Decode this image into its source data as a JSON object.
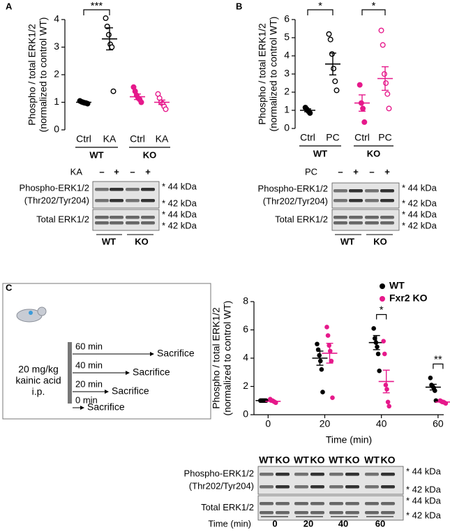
{
  "chart_data": [
    {
      "type": "dot",
      "panel": "A",
      "ylabel": [
        "Phospho / total ERK1/2",
        "(normalized to control WT)"
      ],
      "ylim": [
        0,
        4
      ],
      "yticks": [
        0,
        1,
        2,
        3,
        4
      ],
      "groups": [
        {
          "name": "WT",
          "significance": "***",
          "items": [
            {
              "category": "Ctrl",
              "color": "#000000",
              "filled": true,
              "points": [
                1.05,
                1.02,
                1.0,
                0.98,
                0.97,
                0.95
              ],
              "mean": 1.0,
              "sem": 0.02
            },
            {
              "category": "KA",
              "color": "#000000",
              "filled": false,
              "points": [
                4.05,
                3.75,
                3.45,
                3.1,
                3.0,
                1.4
              ],
              "mean": 3.3,
              "sem": 0.4
            }
          ]
        },
        {
          "name": "KO",
          "items": [
            {
              "category": "Ctrl",
              "color": "#e6198b",
              "filled": true,
              "points": [
                1.55,
                1.4,
                1.25,
                1.15,
                1.1,
                1.0
              ],
              "mean": 1.2,
              "sem": 0.1
            },
            {
              "category": "KA",
              "color": "#e6198b",
              "filled": false,
              "points": [
                1.3,
                1.15,
                1.0,
                0.95,
                0.85,
                0.75
              ],
              "mean": 1.0,
              "sem": 0.08
            }
          ]
        }
      ]
    },
    {
      "type": "dot",
      "panel": "B",
      "ylabel": [
        "Phospho / total ERK1/2",
        "(normalized to control WT)"
      ],
      "ylim": [
        0,
        6
      ],
      "yticks": [
        0,
        1,
        2,
        3,
        4,
        5,
        6
      ],
      "groups": [
        {
          "name": "WT",
          "significance": "*",
          "items": [
            {
              "category": "Ctrl",
              "color": "#000000",
              "filled": true,
              "points": [
                1.15,
                1.05,
                0.95,
                0.85
              ],
              "mean": 1.0,
              "sem": 0.08
            },
            {
              "category": "PC",
              "color": "#000000",
              "filled": false,
              "points": [
                5.2,
                4.9,
                4.1,
                3.3,
                2.6,
                2.1
              ],
              "mean": 3.55,
              "sem": 0.6
            }
          ]
        },
        {
          "name": "KO",
          "significance": "*",
          "items": [
            {
              "category": "Ctrl",
              "color": "#e6198b",
              "filled": true,
              "points": [
                2.4,
                1.4,
                1.1,
                0.35
              ],
              "mean": 1.4,
              "sem": 0.45
            },
            {
              "category": "PC",
              "color": "#e6198b",
              "filled": false,
              "points": [
                5.4,
                4.6,
                3.0,
                2.5,
                1.9,
                1.1
              ],
              "mean": 2.75,
              "sem": 0.65
            }
          ]
        }
      ]
    },
    {
      "type": "time-dot",
      "panel": "C",
      "ylabel": [
        "Phospho / total ERK1/2",
        "(normalized to control WT)"
      ],
      "xlabel": "Time (min)",
      "x": [
        0,
        20,
        40,
        60
      ],
      "xlim": [
        -5,
        62
      ],
      "xticks": [
        0,
        20,
        40,
        60
      ],
      "ylim": [
        0,
        8
      ],
      "yticks": [
        0,
        2,
        4,
        6,
        8
      ],
      "series": [
        {
          "name": "WT",
          "color": "#000000",
          "points": [
            [
              1.0,
              1.0,
              1.0,
              1.0,
              1.0,
              1.0
            ],
            [
              5.0,
              4.6,
              4.2,
              3.8,
              3.2,
              1.6
            ],
            [
              6.1,
              5.4,
              5.1,
              4.8,
              4.3,
              3.1
            ],
            [
              2.6,
              2.1,
              2.0,
              1.9,
              1.7,
              1.0
            ]
          ],
          "means": [
            1.0,
            4.0,
            5.1,
            1.95
          ],
          "sems": [
            0.01,
            0.5,
            0.5,
            0.2
          ]
        },
        {
          "name": "Fxr2 KO",
          "color": "#e6198b",
          "points": [
            [
              1.1,
              1.0,
              1.0,
              0.95,
              0.9,
              0.85
            ],
            [
              6.2,
              5.6,
              4.9,
              4.5,
              3.8,
              1.2
            ],
            [
              5.2,
              4.3,
              2.1,
              1.8,
              0.9,
              0.6
            ],
            [
              1.0,
              0.95,
              0.9,
              0.9,
              0.85,
              0.8
            ]
          ],
          "means": [
            0.95,
            4.35,
            2.35,
            0.9
          ],
          "sems": [
            0.04,
            0.7,
            0.8,
            0.03
          ]
        }
      ],
      "significance": [
        null,
        null,
        "*",
        "**"
      ]
    }
  ],
  "blots": [
    {
      "treatment": "KA",
      "lanes": [
        "–",
        "+",
        "–",
        "+"
      ],
      "rows": [
        {
          "label": [
            "Phospho-ERK1/2",
            "(Thr202/Tyr204)"
          ],
          "bands": [
            "* 44 kDa",
            "* 42 kDa"
          ]
        },
        {
          "label": [
            "Total ERK1/2"
          ],
          "bands": [
            "* 44 kDa",
            "* 42 kDa"
          ]
        }
      ],
      "groups": [
        "WT",
        "KO"
      ]
    },
    {
      "treatment": "PC",
      "lanes": [
        "–",
        "+",
        "–",
        "+"
      ],
      "rows": [
        {
          "label": [
            "Phospho-ERK1/2",
            "(Thr202/Tyr204)"
          ],
          "bands": [
            "* 44 kDa",
            "* 42 kDa"
          ]
        },
        {
          "label": [
            "Total ERK1/2"
          ],
          "bands": [
            "* 44 kDa",
            "* 42 kDa"
          ]
        }
      ],
      "groups": [
        "WT",
        "KO"
      ]
    },
    {
      "lanes": [
        "WT",
        "KO",
        "WT",
        "KO",
        "WT",
        "KO",
        "WT",
        "KO"
      ],
      "rows": [
        {
          "label": [
            "Phospho-ERK1/2",
            "(Thr202/Tyr204)"
          ],
          "bands": [
            "* 44 kDa",
            "* 42 kDa"
          ]
        },
        {
          "label": [
            "Total ERK1/2"
          ],
          "bands": [
            "* 44 kDa",
            "* 42 kDa"
          ]
        }
      ],
      "group_axis": "Time (min)",
      "groups": [
        "0",
        "20",
        "40",
        "60"
      ]
    }
  ],
  "schematic": {
    "dose": [
      "20 mg/kg",
      "kainic acid",
      "i.p."
    ],
    "timeline": [
      {
        "time": "60 min",
        "event": "Sacrifice"
      },
      {
        "time": "40 min",
        "event": "Sacrifice"
      },
      {
        "time": "20 min",
        "event": "Sacrifice"
      },
      {
        "time": "0 min",
        "event": "Sacrifice"
      }
    ]
  }
}
